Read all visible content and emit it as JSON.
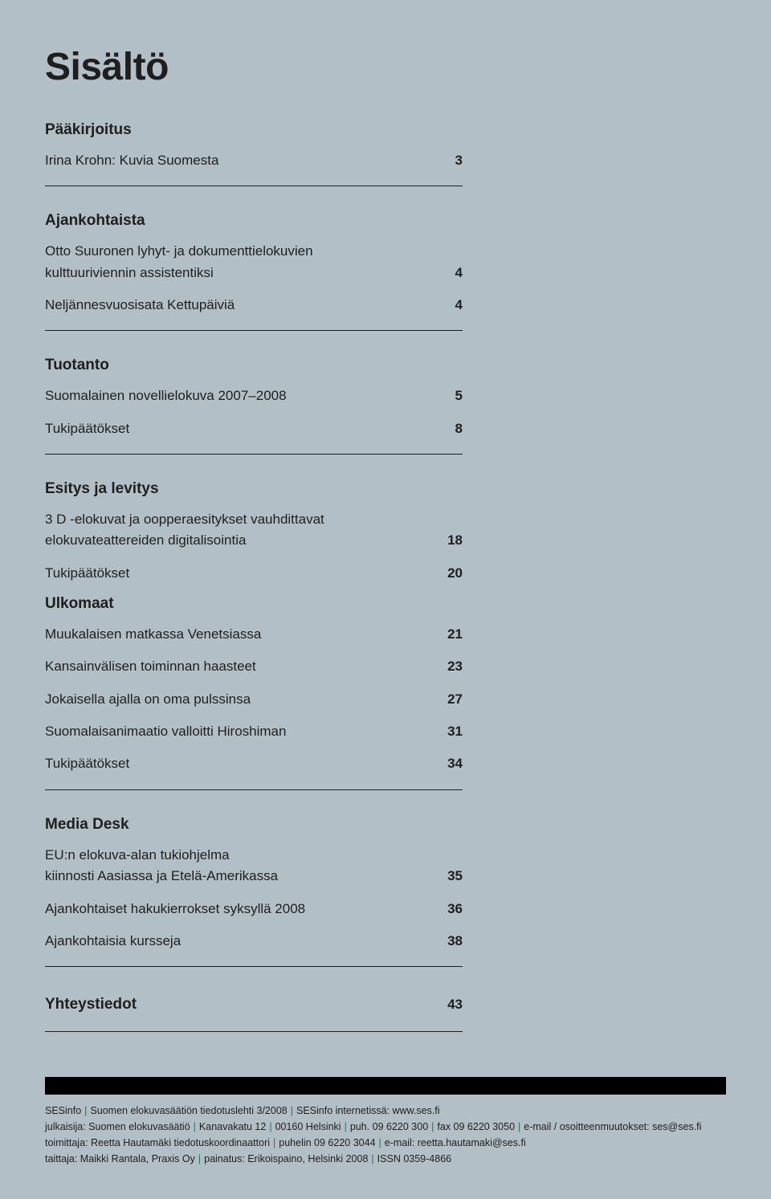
{
  "title": "Sisältö",
  "sections": [
    {
      "head": "Pääkirjoitus",
      "rows": [
        {
          "label": "Irina Krohn: Kuvia Suomesta",
          "pg": "3"
        }
      ]
    },
    {
      "head": "Ajankohtaista",
      "rows": [
        {
          "label_line1": "Otto Suuronen lyhyt- ja dokumenttielokuvien",
          "label_line2": "kulttuuriviennin assistentiksi",
          "pg": "4"
        },
        {
          "label": "Neljännesvuosisata Kettupäiviä",
          "pg": "4"
        }
      ]
    },
    {
      "head": "Tuotanto",
      "rows": [
        {
          "label": "Suomalainen novellielokuva 2007–2008",
          "pg": "5"
        },
        {
          "label": "Tukipäätökset",
          "pg": "8"
        }
      ]
    },
    {
      "head": "Esitys ja levitys",
      "rows": [
        {
          "label_line1": "3 D -elokuvat ja oopperaesitykset vauhdittavat",
          "label_line2": "elokuvateattereiden digitalisointia",
          "pg": "18"
        },
        {
          "label": "Tukipäätökset",
          "pg": "20"
        }
      ],
      "subhead": "Ulkomaat",
      "subrows": [
        {
          "label": "Muukalaisen matkassa Venetsiassa",
          "pg": "21"
        },
        {
          "label": "Kansainvälisen toiminnan haasteet",
          "pg": "23"
        },
        {
          "label": "Jokaisella ajalla on oma pulssinsa",
          "pg": "27"
        },
        {
          "label": "Suomalaisanimaatio valloitti Hiroshiman",
          "pg": "31"
        },
        {
          "label": "Tukipäätökset",
          "pg": "34"
        }
      ]
    },
    {
      "head": "Media Desk",
      "rows": [
        {
          "label_line1": "EU:n elokuva-alan tukiohjelma",
          "label_line2": "kiinnosti Aasiassa ja Etelä-Amerikassa",
          "pg": "35"
        },
        {
          "label": "Ajankohtaiset hakukierrokset syksyllä 2008",
          "pg": "36"
        },
        {
          "label": "Ajankohtaisia kursseja",
          "pg": "38"
        }
      ]
    },
    {
      "head": "Yhteystiedot",
      "head_pg": "43"
    }
  ],
  "footer": {
    "l1a": "SESinfo",
    "l1b": "Suomen elokuvasäätiön tiedotuslehti 3/2008",
    "l1c": "SESinfo internetissä: www.ses.fi",
    "l2a": "julkaisija: Suomen elokuvasäätiö",
    "l2b": "Kanavakatu 12",
    "l2c": "00160 Helsinki",
    "l2d": "puh. 09 6220 300",
    "l2e": "fax 09 6220 3050",
    "l2f": "e-mail / osoitteenmuutokset: ses@ses.fi",
    "l3a": "toimittaja: Reetta Hautamäki tiedotuskoordinaattori",
    "l3b": "puhelin 09 6220 3044",
    "l3c": "e-mail: reetta.hautamaki@ses.fi",
    "l4a": "taittaja: Maikki Rantala, Praxis Oy",
    "l4b": "painatus: Erikoispaino, Helsinki 2008",
    "l4c": "ISSN 0359-4866"
  }
}
